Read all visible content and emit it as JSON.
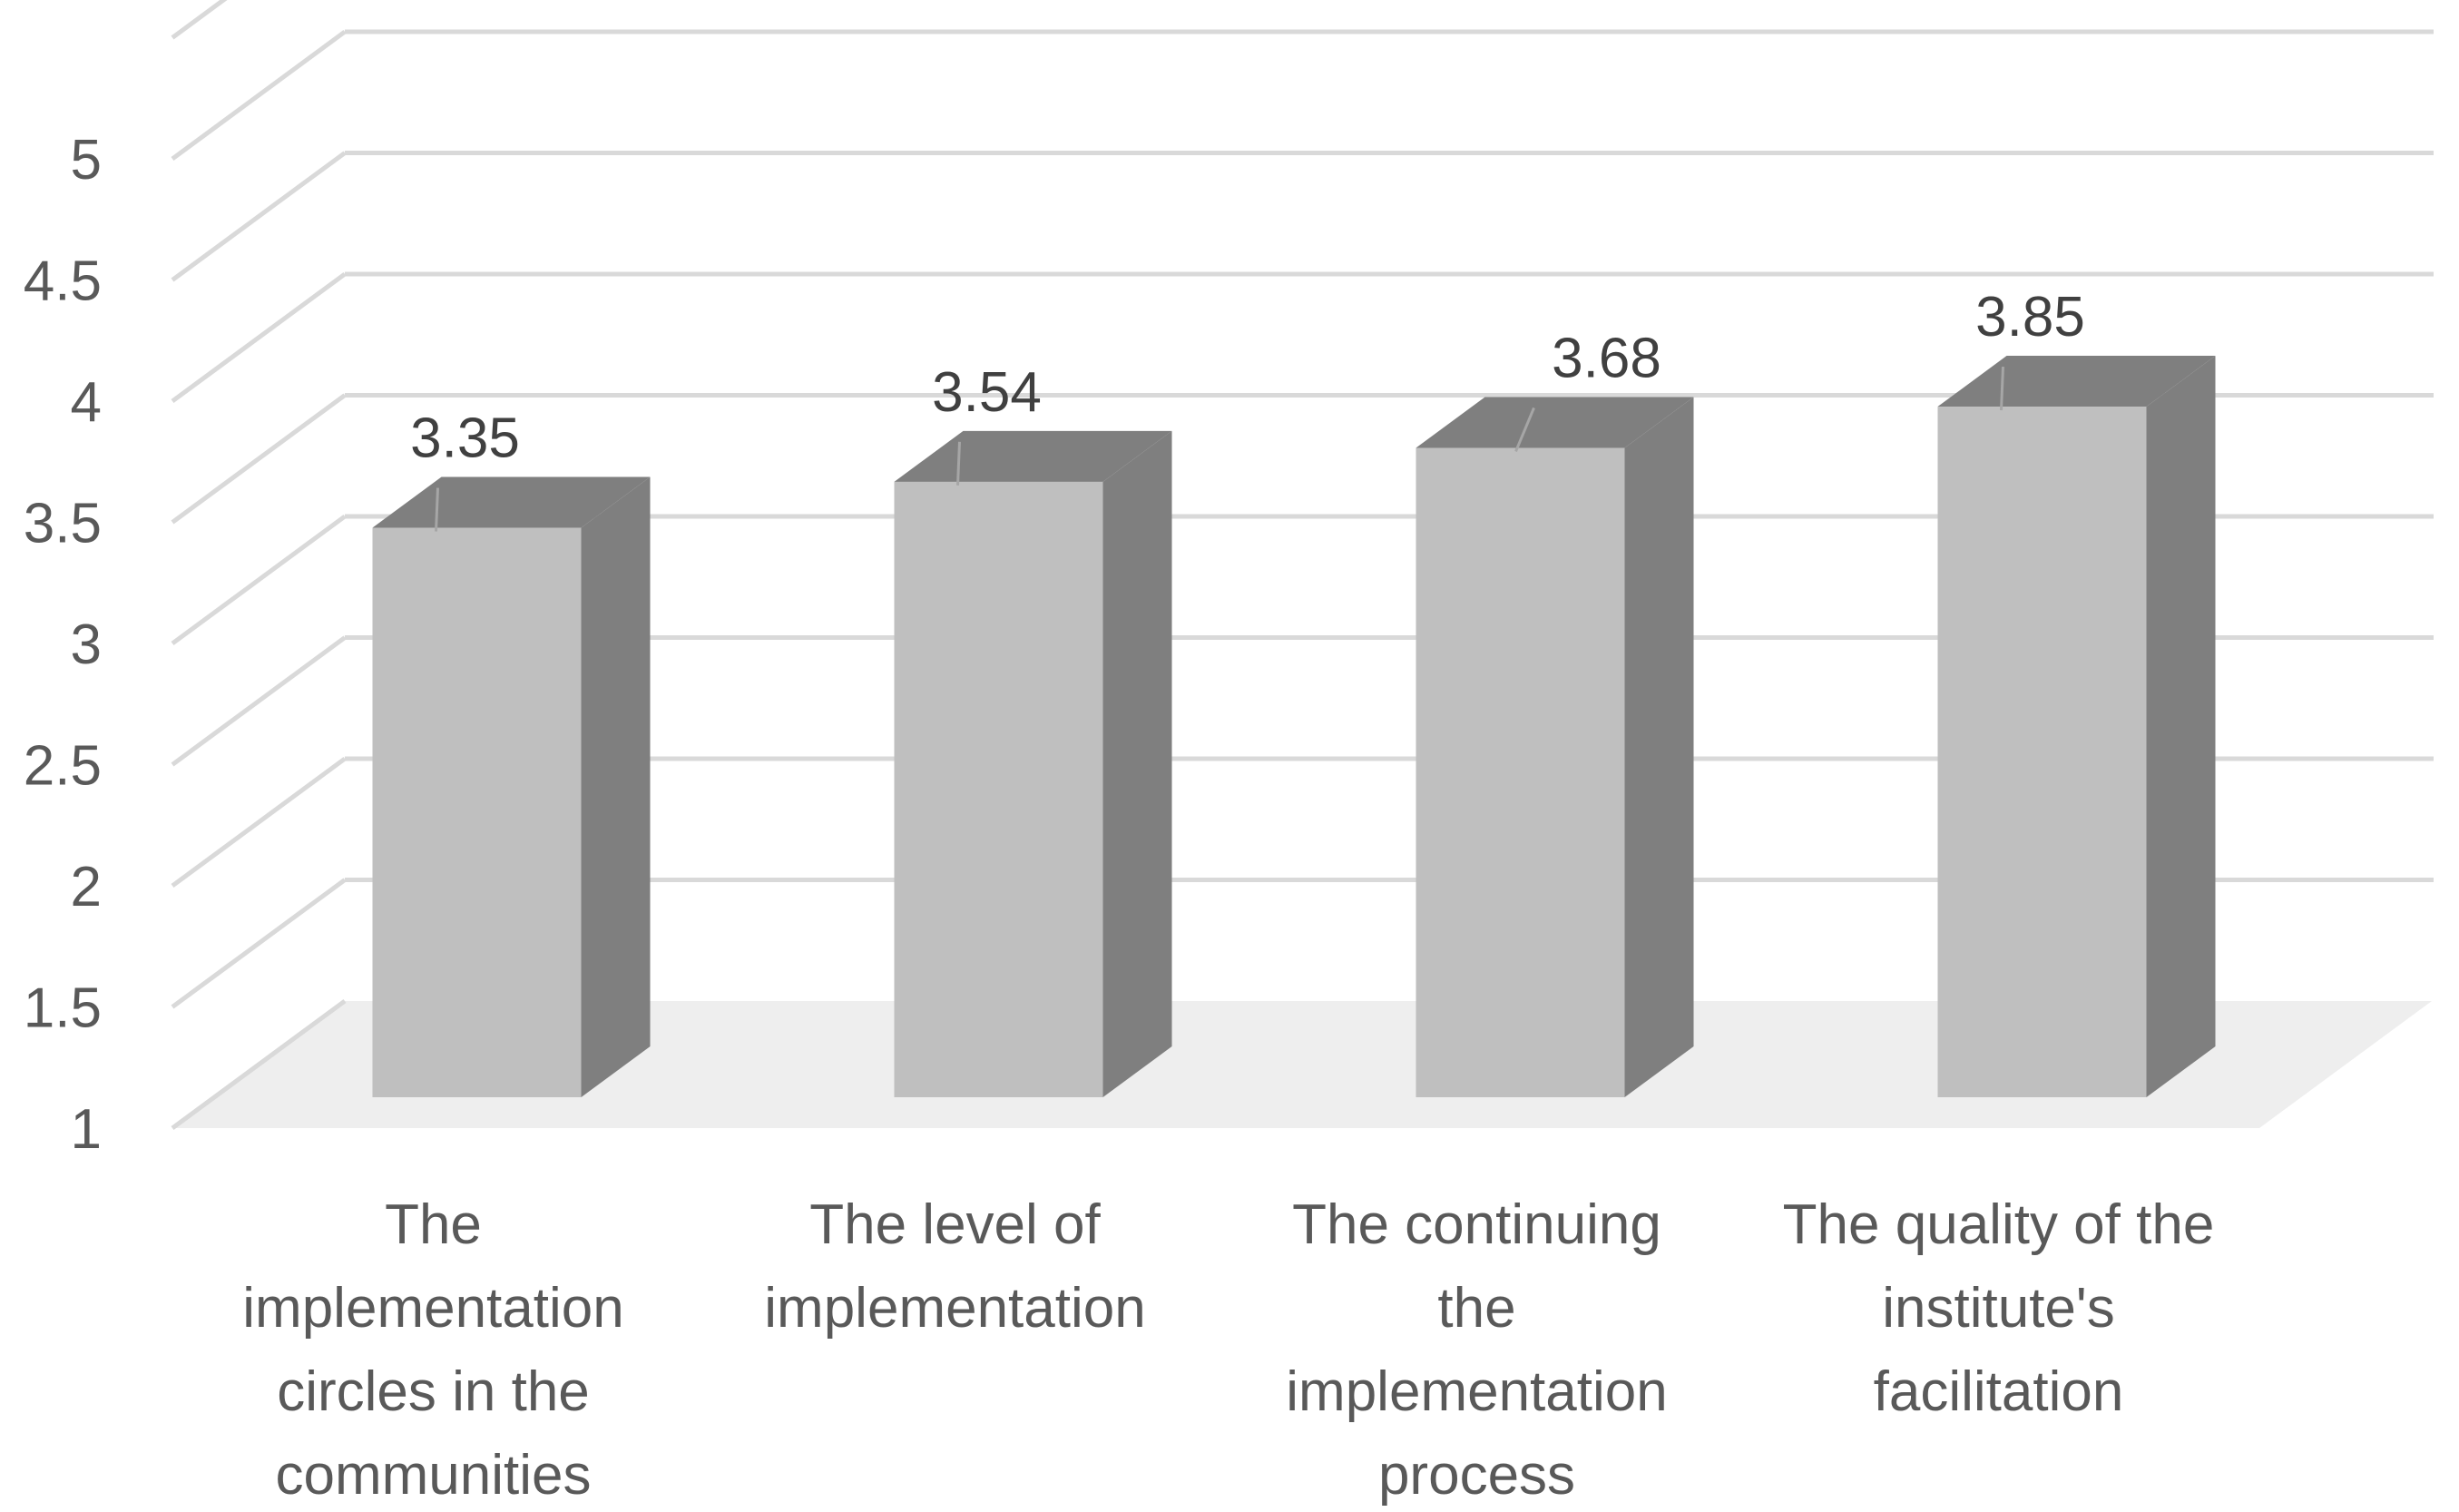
{
  "chart_data": {
    "type": "bar",
    "style": "3d-column",
    "title": "",
    "xlabel": "",
    "ylabel": "",
    "ylim": [
      1,
      5.5
    ],
    "yticks": [
      1,
      1.5,
      2,
      2.5,
      3,
      3.5,
      4,
      4.5,
      5
    ],
    "ytick_labels": [
      "1",
      "1.5",
      "2",
      "2.5",
      "3",
      "3.5",
      "4",
      "4.5",
      "5"
    ],
    "categories": [
      [
        "The",
        "implementation",
        "circles in the",
        "communities"
      ],
      [
        "The level of",
        "implementation"
      ],
      [
        "The continuing",
        "the",
        "implementation",
        "process"
      ],
      [
        "The quality of the",
        "institute's",
        "facilitation"
      ]
    ],
    "values": [
      3.35,
      3.54,
      3.68,
      3.85
    ],
    "data_labels": [
      "3.35",
      "3.54",
      "3.68",
      "3.85"
    ],
    "grid": true,
    "colors": {
      "front": "#bfbfbf",
      "top": "#7f7f7f",
      "side": "#7f7f7f",
      "grid": "#d9d9d9",
      "floor": "#eeeeee"
    }
  }
}
